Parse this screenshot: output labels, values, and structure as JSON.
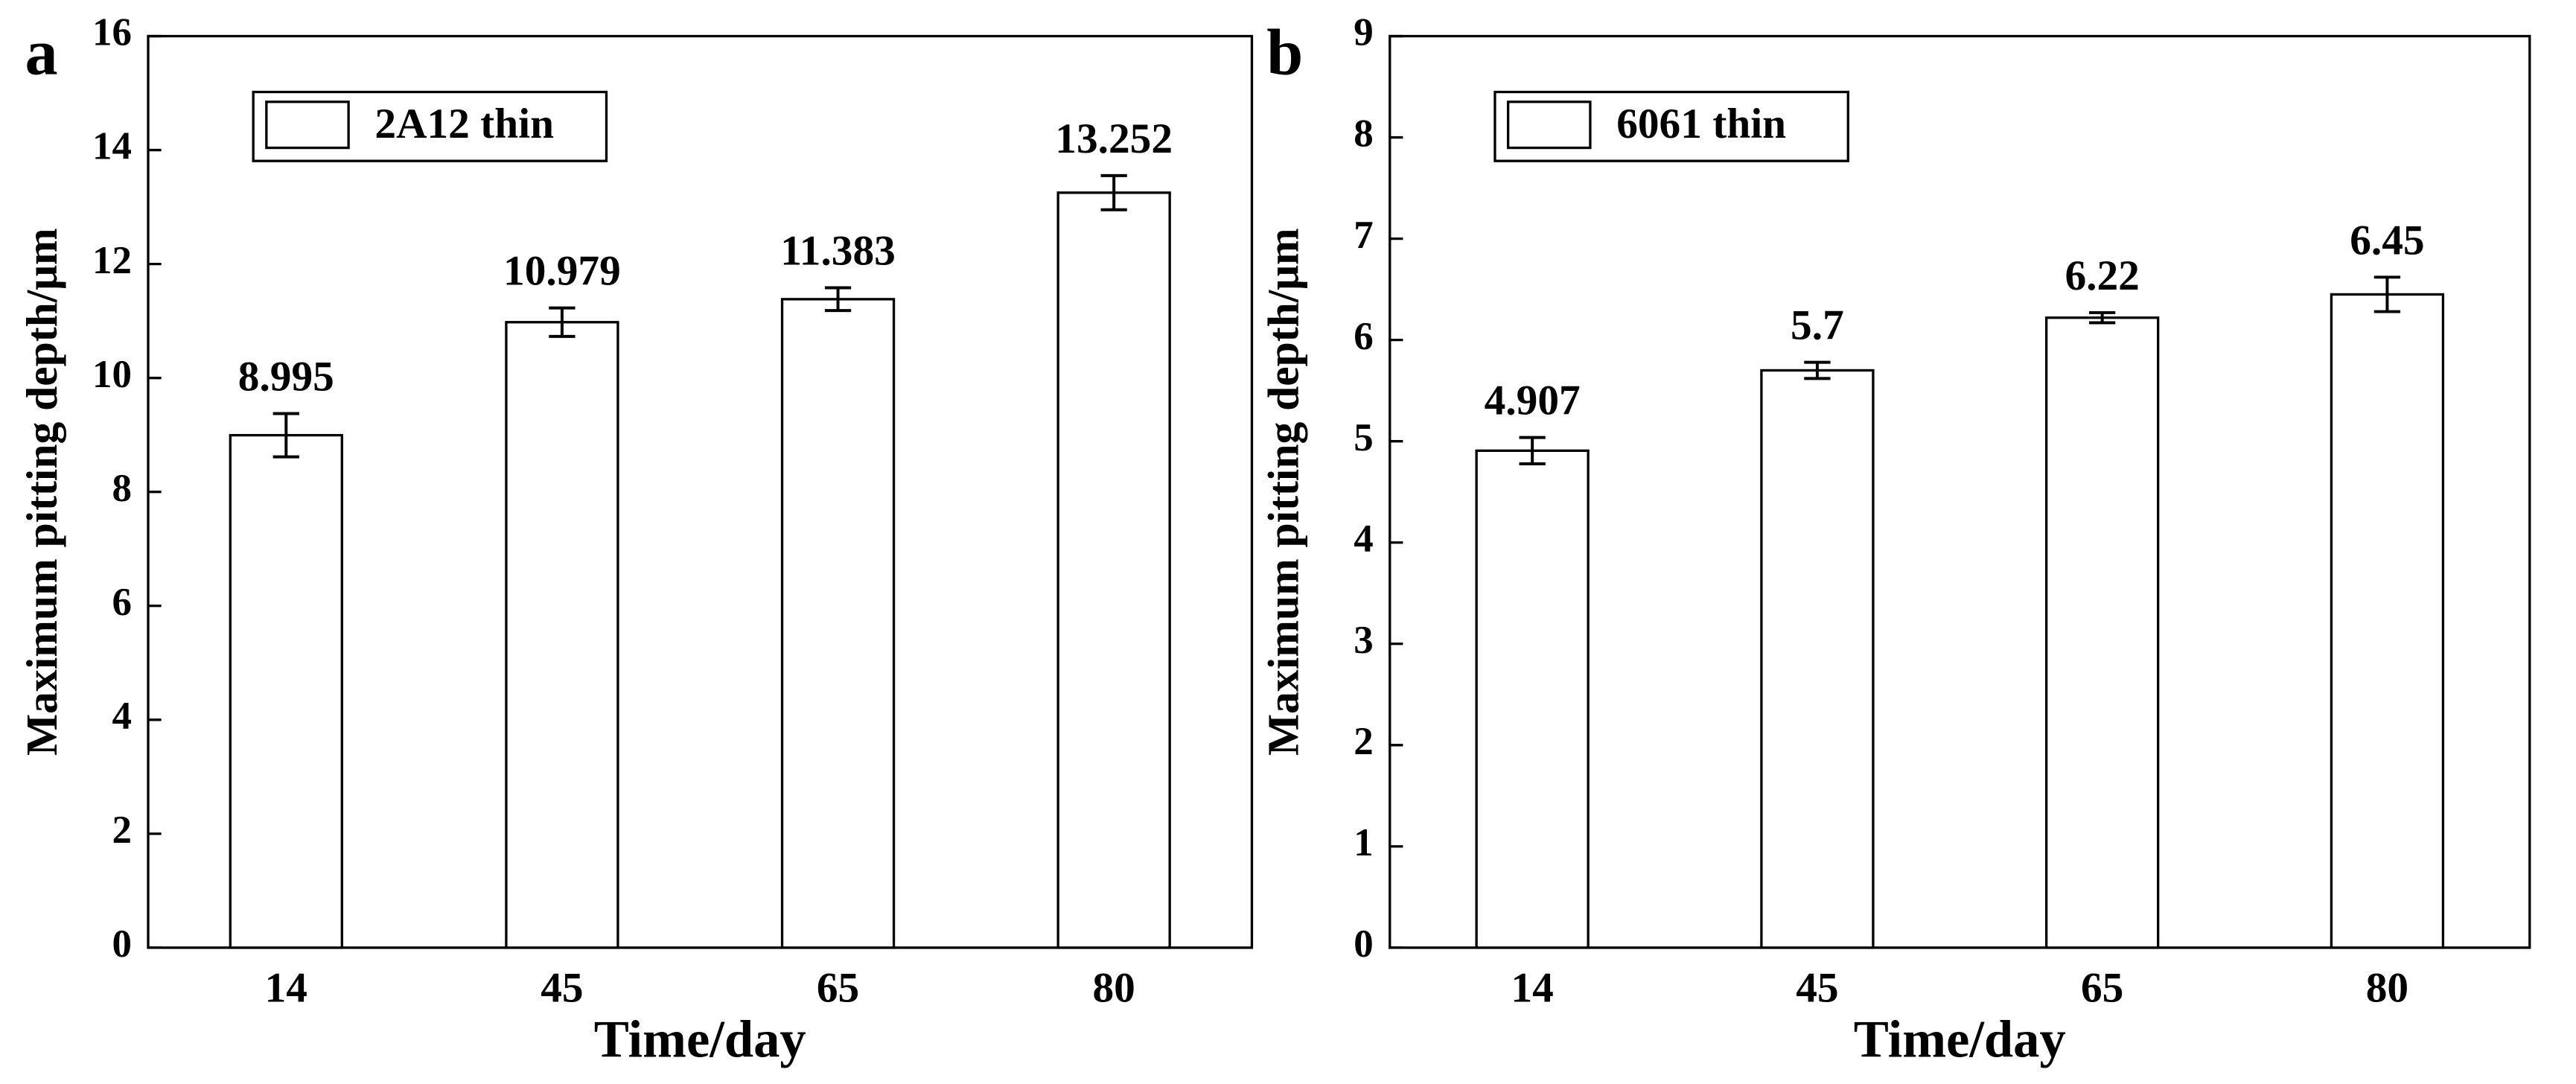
{
  "chart_data": [
    {
      "type": "bar",
      "panel_label": "a",
      "xlabel": "Time/day",
      "ylabel": "Maximum pitting depth/μm",
      "categories": [
        "14",
        "45",
        "65",
        "80"
      ],
      "series": [
        {
          "name": "2A12 thin",
          "color": "#ffffff",
          "values": [
            8.995,
            10.979,
            11.383,
            13.252
          ],
          "errors": [
            0.38,
            0.25,
            0.2,
            0.3
          ]
        }
      ],
      "ylim": [
        0,
        16
      ],
      "yticks": [
        0,
        2,
        4,
        6,
        8,
        10,
        12,
        14,
        16
      ]
    },
    {
      "type": "bar",
      "panel_label": "b",
      "xlabel": "Time/day",
      "ylabel": "Maximum pitting depth/μm",
      "categories": [
        "14",
        "45",
        "65",
        "80"
      ],
      "series": [
        {
          "name": "6061 thin",
          "color": "#ffffff",
          "values": [
            4.907,
            5.7,
            6.22,
            6.45
          ],
          "errors": [
            0.13,
            0.08,
            0.05,
            0.17
          ]
        }
      ],
      "ylim": [
        0,
        9
      ],
      "yticks": [
        0,
        1,
        2,
        3,
        4,
        5,
        6,
        7,
        8,
        9
      ]
    }
  ]
}
